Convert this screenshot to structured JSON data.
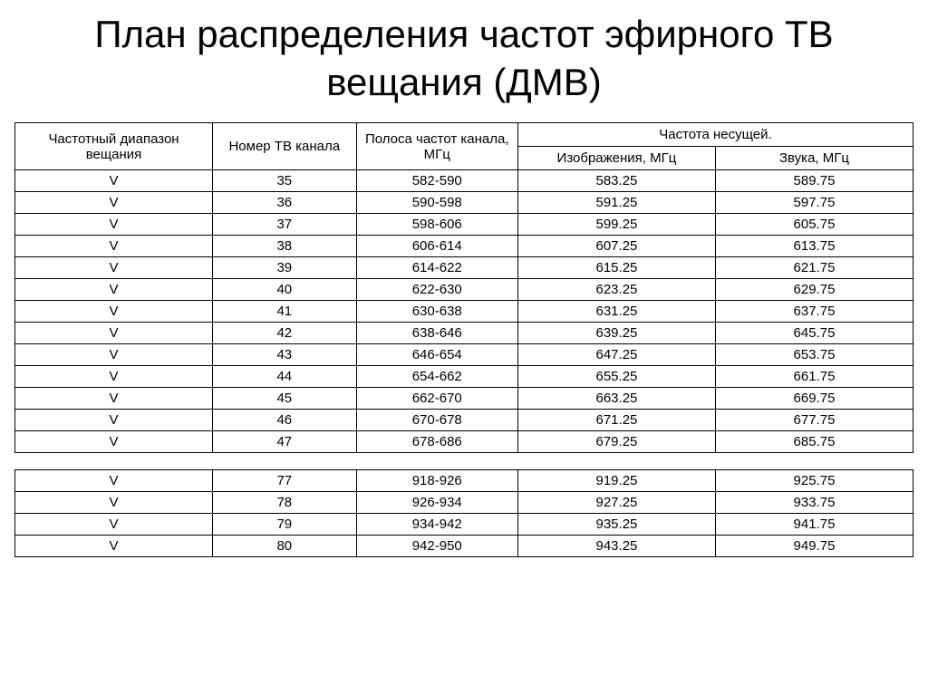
{
  "title": "План распределения частот эфирного ТВ вещания (ДМВ)",
  "headers": {
    "band": "Частотный диапазон вещания",
    "channel": "Номер ТВ канала",
    "freqband": "Полоса частот канала, МГц",
    "carrier": "Частота несущей.",
    "video": "Изображения, МГц",
    "audio": "Звука, МГц"
  },
  "rows_a": [
    {
      "band": "V",
      "channel": "35",
      "freqband": "582-590",
      "video": "583.25",
      "audio": "589.75"
    },
    {
      "band": "V",
      "channel": "36",
      "freqband": "590-598",
      "video": "591.25",
      "audio": "597.75"
    },
    {
      "band": "V",
      "channel": "37",
      "freqband": "598-606",
      "video": "599.25",
      "audio": "605.75"
    },
    {
      "band": "V",
      "channel": "38",
      "freqband": "606-614",
      "video": "607.25",
      "audio": "613.75"
    },
    {
      "band": "V",
      "channel": "39",
      "freqband": "614-622",
      "video": "615.25",
      "audio": "621.75"
    },
    {
      "band": "V",
      "channel": "40",
      "freqband": "622-630",
      "video": "623.25",
      "audio": "629.75"
    },
    {
      "band": "V",
      "channel": "41",
      "freqband": "630-638",
      "video": "631.25",
      "audio": "637.75"
    },
    {
      "band": "V",
      "channel": "42",
      "freqband": "638-646",
      "video": "639.25",
      "audio": "645.75"
    },
    {
      "band": "V",
      "channel": "43",
      "freqband": "646-654",
      "video": "647.25",
      "audio": "653.75"
    },
    {
      "band": "V",
      "channel": "44",
      "freqband": "654-662",
      "video": "655.25",
      "audio": "661.75"
    },
    {
      "band": "V",
      "channel": "45",
      "freqband": "662-670",
      "video": "663.25",
      "audio": "669.75"
    },
    {
      "band": "V",
      "channel": "46",
      "freqband": "670-678",
      "video": "671.25",
      "audio": "677.75"
    },
    {
      "band": "V",
      "channel": "47",
      "freqband": "678-686",
      "video": "679.25",
      "audio": "685.75"
    }
  ],
  "rows_b": [
    {
      "band": "V",
      "channel": "77",
      "freqband": "918-926",
      "video": "919.25",
      "audio": "925.75"
    },
    {
      "band": "V",
      "channel": "78",
      "freqband": "926-934",
      "video": "927.25",
      "audio": "933.75"
    },
    {
      "band": "V",
      "channel": "79",
      "freqband": "934-942",
      "video": "935.25",
      "audio": "941.75"
    },
    {
      "band": "V",
      "channel": "80",
      "freqband": "942-950",
      "video": "943.25",
      "audio": "949.75"
    }
  ],
  "styles": {
    "background_color": "#ffffff",
    "border_color": "#000000",
    "text_color": "#000000",
    "title_fontsize": 42,
    "cell_fontsize": 15,
    "header_fontsize": 15,
    "col_widths_pct": [
      22,
      16,
      18,
      22,
      22
    ]
  }
}
